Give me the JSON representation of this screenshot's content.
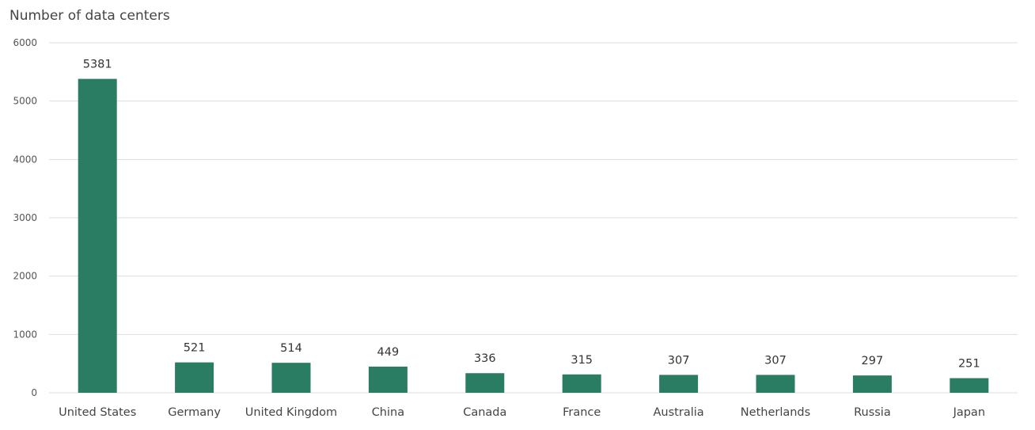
{
  "chart_data": {
    "type": "bar",
    "title": "Number of data centers",
    "xlabel": "",
    "ylabel": "",
    "categories": [
      "United States",
      "Germany",
      "United Kingdom",
      "China",
      "Canada",
      "France",
      "Australia",
      "Netherlands",
      "Russia",
      "Japan"
    ],
    "values": [
      5381,
      521,
      514,
      449,
      336,
      315,
      307,
      307,
      297,
      251
    ],
    "ylim": [
      0,
      6000
    ],
    "yticks": [
      0,
      1000,
      2000,
      3000,
      4000,
      5000,
      6000
    ],
    "grid": true,
    "legend": "none",
    "bar_color": "#2a7d63"
  }
}
